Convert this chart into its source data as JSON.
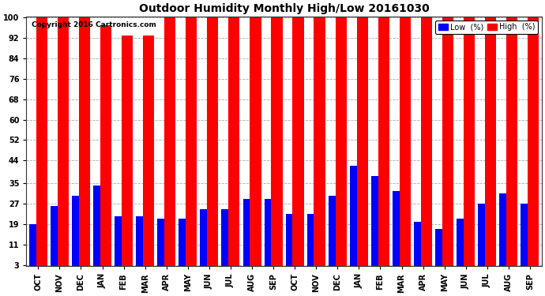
{
  "title": "Outdoor Humidity Monthly High/Low 20161030",
  "copyright": "Copyright 2016 Cartronics.com",
  "months": [
    "OCT",
    "NOV",
    "DEC",
    "JAN",
    "FEB",
    "MAR",
    "APR",
    "MAY",
    "JUN",
    "JUL",
    "AUG",
    "SEP",
    "OCT",
    "NOV",
    "DEC",
    "JAN",
    "FEB",
    "MAR",
    "APR",
    "MAY",
    "JUN",
    "JUL",
    "AUG",
    "SEP"
  ],
  "high_values": [
    100,
    100,
    100,
    97,
    93,
    93,
    100,
    100,
    100,
    100,
    100,
    100,
    100,
    100,
    100,
    100,
    100,
    100,
    100,
    100,
    100,
    100,
    100,
    100
  ],
  "low_values": [
    19,
    26,
    30,
    34,
    22,
    22,
    21,
    21,
    25,
    25,
    29,
    29,
    23,
    23,
    30,
    42,
    38,
    32,
    20,
    17,
    21,
    27,
    31,
    27
  ],
  "high_color": "#ff0000",
  "low_color": "#0000ff",
  "bg_color": "#ffffff",
  "plot_bg_color": "#ffffff",
  "ylabel_ticks": [
    3,
    11,
    19,
    27,
    35,
    44,
    52,
    60,
    68,
    76,
    84,
    92,
    100
  ],
  "ymin": 3,
  "ymax": 100,
  "grid_color": "#aaaaaa",
  "title_fontsize": 10,
  "tick_fontsize": 7,
  "legend_low_label": "Low  (%)",
  "legend_high_label": "High  (%)"
}
